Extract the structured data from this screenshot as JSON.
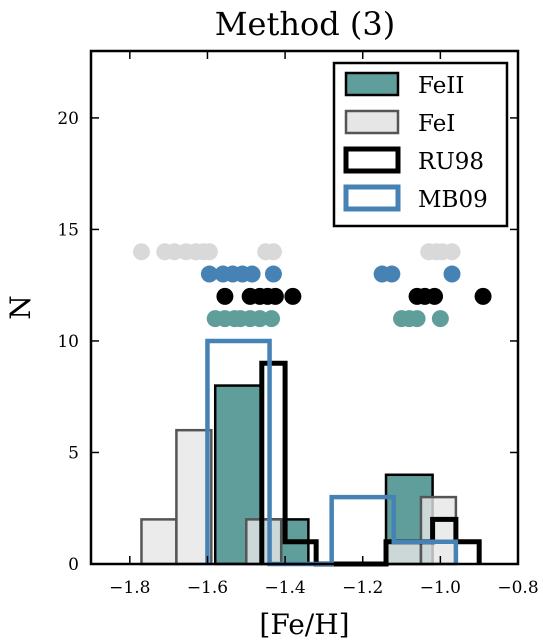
{
  "chart_data": {
    "type": "histogram",
    "title": "Method (3)",
    "xlabel": "[Fe/H]",
    "ylabel": "N",
    "xlim": [
      -1.9,
      -0.8
    ],
    "ylim": [
      0,
      23
    ],
    "xticks": [
      -1.8,
      -1.6,
      -1.4,
      -1.2,
      -1.0,
      -0.8
    ],
    "xtick_labels": [
      "−1.8",
      "−1.6",
      "−1.4",
      "−1.2",
      "−1.0",
      "−0.8"
    ],
    "yticks": [
      0,
      5,
      10,
      15,
      20
    ],
    "ytick_labels": [
      "0",
      "5",
      "10",
      "15",
      "20"
    ],
    "legend_position": "top-right",
    "series": [
      {
        "name": "FeII",
        "style": "filled",
        "fill": "#5f9e9a",
        "edge": "#000000",
        "bins": [
          {
            "x0": -1.58,
            "x1": -1.46,
            "n": 8
          },
          {
            "x0": -1.46,
            "x1": -1.34,
            "n": 2
          },
          {
            "x0": -1.14,
            "x1": -1.02,
            "n": 4
          },
          {
            "x0": -1.02,
            "x1": -0.9,
            "n": 0
          }
        ],
        "points": [
          -1.58,
          -1.555,
          -1.53,
          -1.515,
          -1.49,
          -1.465,
          -1.435,
          -1.1,
          -1.08,
          -1.06,
          -1.0
        ],
        "points_y": 11,
        "point_color": "#5f9e9a"
      },
      {
        "name": "FeI",
        "style": "filled",
        "fill": "#e6e6e6",
        "edge": "#555555",
        "bins": [
          {
            "x0": -1.77,
            "x1": -1.68,
            "n": 2
          },
          {
            "x0": -1.68,
            "x1": -1.59,
            "n": 6
          },
          {
            "x0": -1.59,
            "x1": -1.5,
            "n": 0
          },
          {
            "x0": -1.5,
            "x1": -1.41,
            "n": 2
          },
          {
            "x0": -1.41,
            "x1": -1.32,
            "n": 0
          },
          {
            "x0": -1.32,
            "x1": -1.23,
            "n": 0
          },
          {
            "x0": -1.23,
            "x1": -1.14,
            "n": 0
          },
          {
            "x0": -1.14,
            "x1": -1.05,
            "n": 1
          },
          {
            "x0": -1.05,
            "x1": -0.96,
            "n": 3
          }
        ],
        "points": [
          -1.77,
          -1.71,
          -1.685,
          -1.655,
          -1.63,
          -1.61,
          -1.595,
          -1.45,
          -1.43,
          -1.03,
          -1.01,
          -0.995,
          -0.97
        ],
        "points_y": 14,
        "point_color": "#d9d9d9"
      },
      {
        "name": "RU98",
        "style": "step",
        "edge": "#000000",
        "bins": [
          {
            "x0": -1.46,
            "x1": -1.4,
            "n": 9
          },
          {
            "x0": -1.4,
            "x1": -1.32,
            "n": 1
          },
          {
            "x0": -1.32,
            "x1": -1.14,
            "n": 0
          },
          {
            "x0": -1.14,
            "x1": -1.02,
            "n": 1
          },
          {
            "x0": -1.02,
            "x1": -0.96,
            "n": 2
          },
          {
            "x0": -0.96,
            "x1": -0.9,
            "n": 1
          }
        ],
        "points": [
          -1.555,
          -1.49,
          -1.465,
          -1.445,
          -1.425,
          -1.38,
          -1.06,
          -1.04,
          -1.015,
          -0.89
        ],
        "points_y": 12,
        "point_color": "#000000"
      },
      {
        "name": "MB09",
        "style": "step",
        "edge": "#4682b4",
        "bins": [
          {
            "x0": -1.6,
            "x1": -1.44,
            "n": 10
          },
          {
            "x0": -1.44,
            "x1": -1.28,
            "n": 0
          },
          {
            "x0": -1.28,
            "x1": -1.12,
            "n": 3
          },
          {
            "x0": -1.12,
            "x1": -0.96,
            "n": 1
          }
        ],
        "points": [
          -1.595,
          -1.56,
          -1.535,
          -1.51,
          -1.485,
          -1.43,
          -1.15,
          -1.125,
          -0.97
        ],
        "points_y": 13,
        "point_color": "#4682b4"
      }
    ]
  }
}
